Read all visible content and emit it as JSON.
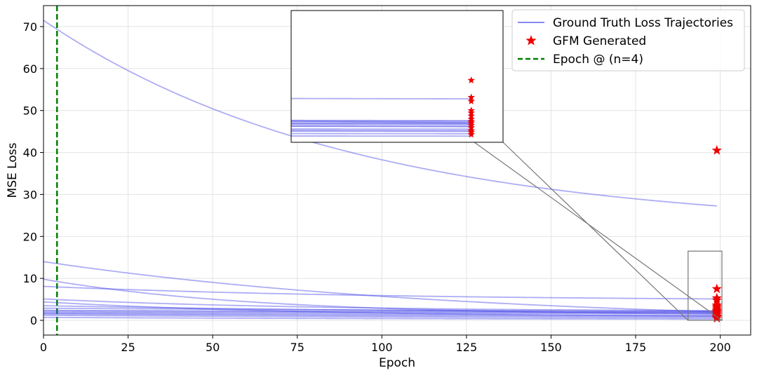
{
  "chart_data": {
    "type": "line",
    "title": "",
    "xlabel": "Epoch",
    "ylabel": "MSE Loss",
    "xlim": [
      0,
      209
    ],
    "ylim": [
      -3.5,
      75
    ],
    "xticks": [
      0,
      25,
      50,
      75,
      100,
      125,
      150,
      175,
      200
    ],
    "yticks": [
      0,
      10,
      20,
      30,
      40,
      50,
      60,
      70
    ],
    "grid": true,
    "legend_position": "top-right",
    "legend": [
      {
        "label": "Ground Truth Loss Trajectories",
        "kind": "line",
        "color": "#6666ee"
      },
      {
        "label": "GFM Generated",
        "kind": "star",
        "color": "#ee0000"
      },
      {
        "label": "Epoch @ (n=4)",
        "kind": "dashed",
        "color": "#008000"
      }
    ],
    "vline": {
      "x": 4,
      "color": "#008000"
    },
    "line_color": "#4a4ae8",
    "marker_color": "#ee0000",
    "trajectories": [
      {
        "start": 71.5,
        "end": 27.2,
        "rate": 2.2
      },
      {
        "start": 14.0,
        "end": 2.0,
        "rate": 1.6
      },
      {
        "start": 9.8,
        "end": 1.5,
        "rate": 3.2
      },
      {
        "start": 8.1,
        "end": 5.1,
        "rate": 2.0
      },
      {
        "start": 5.1,
        "end": 2.3,
        "rate": 2.5
      },
      {
        "start": 4.4,
        "end": 1.0,
        "rate": 2.5
      },
      {
        "start": 3.5,
        "end": 1.9,
        "rate": 1.5
      },
      {
        "start": 2.9,
        "end": 2.2,
        "rate": 1.0
      },
      {
        "start": 2.4,
        "end": 2.0,
        "rate": 1.0
      },
      {
        "start": 2.2,
        "end": 1.8,
        "rate": 1.0
      },
      {
        "start": 1.9,
        "end": 1.6,
        "rate": 1.0
      },
      {
        "start": 1.7,
        "end": 1.2,
        "rate": 1.0
      },
      {
        "start": 1.5,
        "end": 0.9,
        "rate": 1.0
      },
      {
        "start": 1.2,
        "end": 0.6,
        "rate": 1.0
      },
      {
        "start": 0.7,
        "end": 0.3,
        "rate": 1.5
      }
    ],
    "generated_points": {
      "x": 199,
      "values": [
        40.5,
        7.5,
        5.3,
        4.8,
        3.6,
        3.3,
        2.9,
        2.5,
        2.2,
        2.0,
        1.7,
        1.4,
        1.0,
        0.8,
        0.5
      ]
    },
    "inset": {
      "xlim": [
        190.5,
        200.5
      ],
      "ylim": [
        -0.5,
        16.5
      ],
      "source_box": {
        "x": [
          190.5,
          200.5
        ],
        "y": [
          0,
          16.5
        ]
      }
    }
  }
}
